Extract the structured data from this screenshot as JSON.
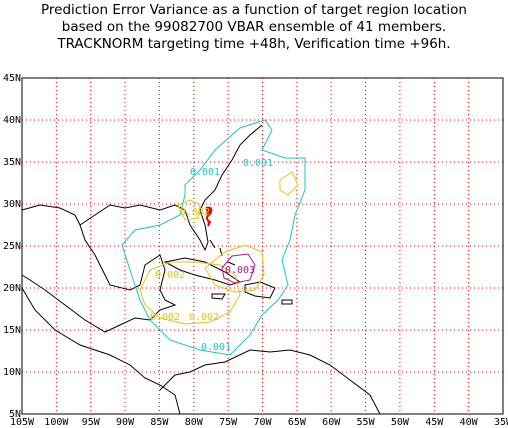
{
  "header": {
    "lines": [
      "Prediction Error Variance as a function of target region location",
      "based on the 99082700 VBAR ensemble of 41 members.",
      "TRACKNORM targeting time +48h, Verification time +96h."
    ]
  },
  "map": {
    "lonlim": [
      -105,
      -35
    ],
    "latlim": [
      5,
      45
    ],
    "lonticks": [
      {
        "value": -105,
        "label": "105W"
      },
      {
        "value": -100,
        "label": "100W"
      },
      {
        "value": -95,
        "label": "95W"
      },
      {
        "value": -90,
        "label": "90W"
      },
      {
        "value": -85,
        "label": "85W"
      },
      {
        "value": -80,
        "label": "80W"
      },
      {
        "value": -75,
        "label": "75W"
      },
      {
        "value": -70,
        "label": "70W"
      },
      {
        "value": -65,
        "label": "65W"
      },
      {
        "value": -60,
        "label": "60W"
      },
      {
        "value": -55,
        "label": "55W"
      },
      {
        "value": -50,
        "label": "50W"
      },
      {
        "value": -45,
        "label": "45W"
      },
      {
        "value": -40,
        "label": "40W"
      },
      {
        "value": -35,
        "label": "35W"
      }
    ],
    "latticks": [
      {
        "value": 5,
        "label": "5N"
      },
      {
        "value": 10,
        "label": "10N"
      },
      {
        "value": 15,
        "label": "15N"
      },
      {
        "value": 20,
        "label": "20N"
      },
      {
        "value": 25,
        "label": "25N"
      },
      {
        "value": 30,
        "label": "30N"
      },
      {
        "value": 35,
        "label": "35N"
      },
      {
        "value": 40,
        "label": "40N"
      },
      {
        "value": 45,
        "label": "45N"
      }
    ],
    "contour_labels": [
      "0.001",
      "0.001",
      "0.002",
      "0.003",
      "0.002",
      "0.002",
      "0.002",
      "0.001"
    ]
  }
}
